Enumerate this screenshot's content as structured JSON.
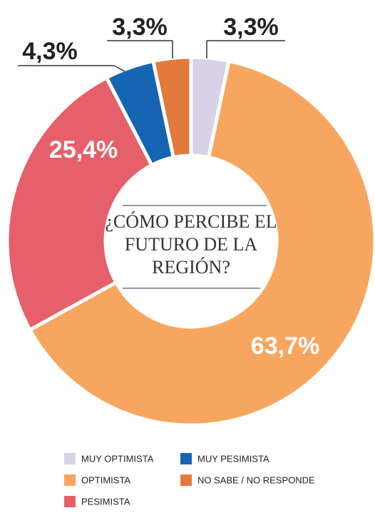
{
  "chart_data": {
    "type": "donut",
    "title": [
      "¿CÓMO PERCIBE EL",
      "FUTURO DE LA",
      "REGIÓN?"
    ],
    "categories": [
      "MUY OPTIMISTA",
      "OPTIMISTA",
      "PESIMISTA",
      "MUY PESIMISTA",
      "NO SABE / NO RESPONDE"
    ],
    "values": [
      3.3,
      63.7,
      25.4,
      4.3,
      3.3
    ],
    "value_labels": [
      "3,3%",
      "63,7%",
      "25,4%",
      "4,3%",
      "3,3%"
    ],
    "colors": [
      "#d9d1e5",
      "#f7a660",
      "#e5606a",
      "#1565b3",
      "#e27a3c"
    ]
  }
}
